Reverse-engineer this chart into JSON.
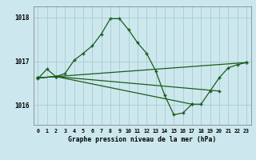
{
  "title": "Graphe pression niveau de la mer (hPa)",
  "bg_color": "#cce8ee",
  "grid_color": "#aacccc",
  "line_color": "#1a5c1a",
  "xlim": [
    -0.5,
    23.5
  ],
  "ylim": [
    1015.55,
    1018.25
  ],
  "yticks": [
    1016,
    1017,
    1018
  ],
  "xticks": [
    0,
    1,
    2,
    3,
    4,
    5,
    6,
    7,
    8,
    9,
    10,
    11,
    12,
    13,
    14,
    15,
    16,
    17,
    18,
    19,
    20,
    21,
    22,
    23
  ],
  "series_main": [
    1016.6,
    1016.82,
    1016.65,
    1016.72,
    1017.02,
    1017.18,
    1017.35,
    1017.62,
    1017.97,
    1017.97,
    1017.72,
    1017.42,
    1017.18,
    1016.78,
    1016.22,
    1015.78,
    1015.82,
    1016.02,
    1016.02,
    1016.32,
    1016.62,
    1016.85,
    1016.92,
    1016.97
  ],
  "line2_x": [
    0,
    23
  ],
  "line2_y": [
    1016.62,
    1016.97
  ],
  "line3_x": [
    0,
    2,
    20
  ],
  "line3_y": [
    1016.62,
    1016.65,
    1016.32
  ],
  "line4_x": [
    0,
    2,
    17
  ],
  "line4_y": [
    1016.62,
    1016.65,
    1016.02
  ]
}
